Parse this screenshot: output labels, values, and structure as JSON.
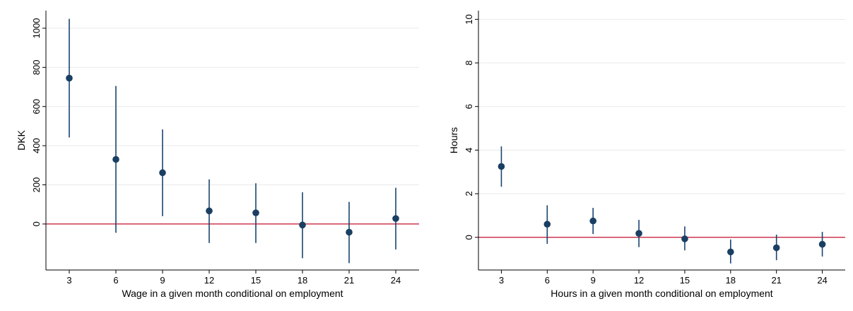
{
  "colors": {
    "marker": "#1a3f63",
    "ci_line": "#1a4470",
    "zero_line": "#c8102e",
    "grid": "#eaeaea",
    "axis": "#000000"
  },
  "chart_data": [
    {
      "type": "scatter",
      "error_bars": true,
      "title": "",
      "xlabel": "Wage in a given month conditional on employment",
      "ylabel": "DKK",
      "x": [
        3,
        6,
        9,
        12,
        15,
        18,
        21,
        24
      ],
      "xticks": [
        "3",
        "6",
        "9",
        "12",
        "15",
        "18",
        "21",
        "24"
      ],
      "y": [
        745,
        330,
        262,
        67,
        57,
        -5,
        -42,
        28
      ],
      "ci_low": [
        442,
        -45,
        40,
        -97,
        -97,
        -175,
        -200,
        -130
      ],
      "ci_high": [
        1048,
        705,
        483,
        228,
        208,
        162,
        113,
        185
      ],
      "yticks": [
        0,
        200,
        400,
        600,
        800,
        1000
      ],
      "ytick_labels": [
        "0",
        "200",
        "400",
        "600",
        "800",
        "1000"
      ],
      "xlim": [
        1.5,
        25.5
      ],
      "ylim": [
        -235,
        1090
      ],
      "reference_line": 0,
      "grid": true
    },
    {
      "type": "scatter",
      "error_bars": true,
      "title": "",
      "xlabel": "Hours in a given month conditional on employment",
      "ylabel": "Hours",
      "x": [
        3,
        6,
        9,
        12,
        15,
        18,
        21,
        24
      ],
      "xticks": [
        "3",
        "6",
        "9",
        "12",
        "15",
        "18",
        "21",
        "24"
      ],
      "y": [
        3.25,
        0.6,
        0.75,
        0.18,
        -0.07,
        -0.67,
        -0.48,
        -0.32
      ],
      "ci_low": [
        2.32,
        -0.3,
        0.15,
        -0.45,
        -0.6,
        -1.2,
        -1.05,
        -0.88
      ],
      "ci_high": [
        4.17,
        1.47,
        1.35,
        0.8,
        0.5,
        -0.1,
        0.12,
        0.25
      ],
      "yticks": [
        0,
        2,
        4,
        6,
        8,
        10
      ],
      "ytick_labels": [
        "0",
        "2",
        "4",
        "6",
        "8",
        "10"
      ],
      "xlim": [
        1.5,
        25.5
      ],
      "ylim": [
        -1.5,
        10.4
      ],
      "reference_line": 0,
      "grid": true
    }
  ]
}
